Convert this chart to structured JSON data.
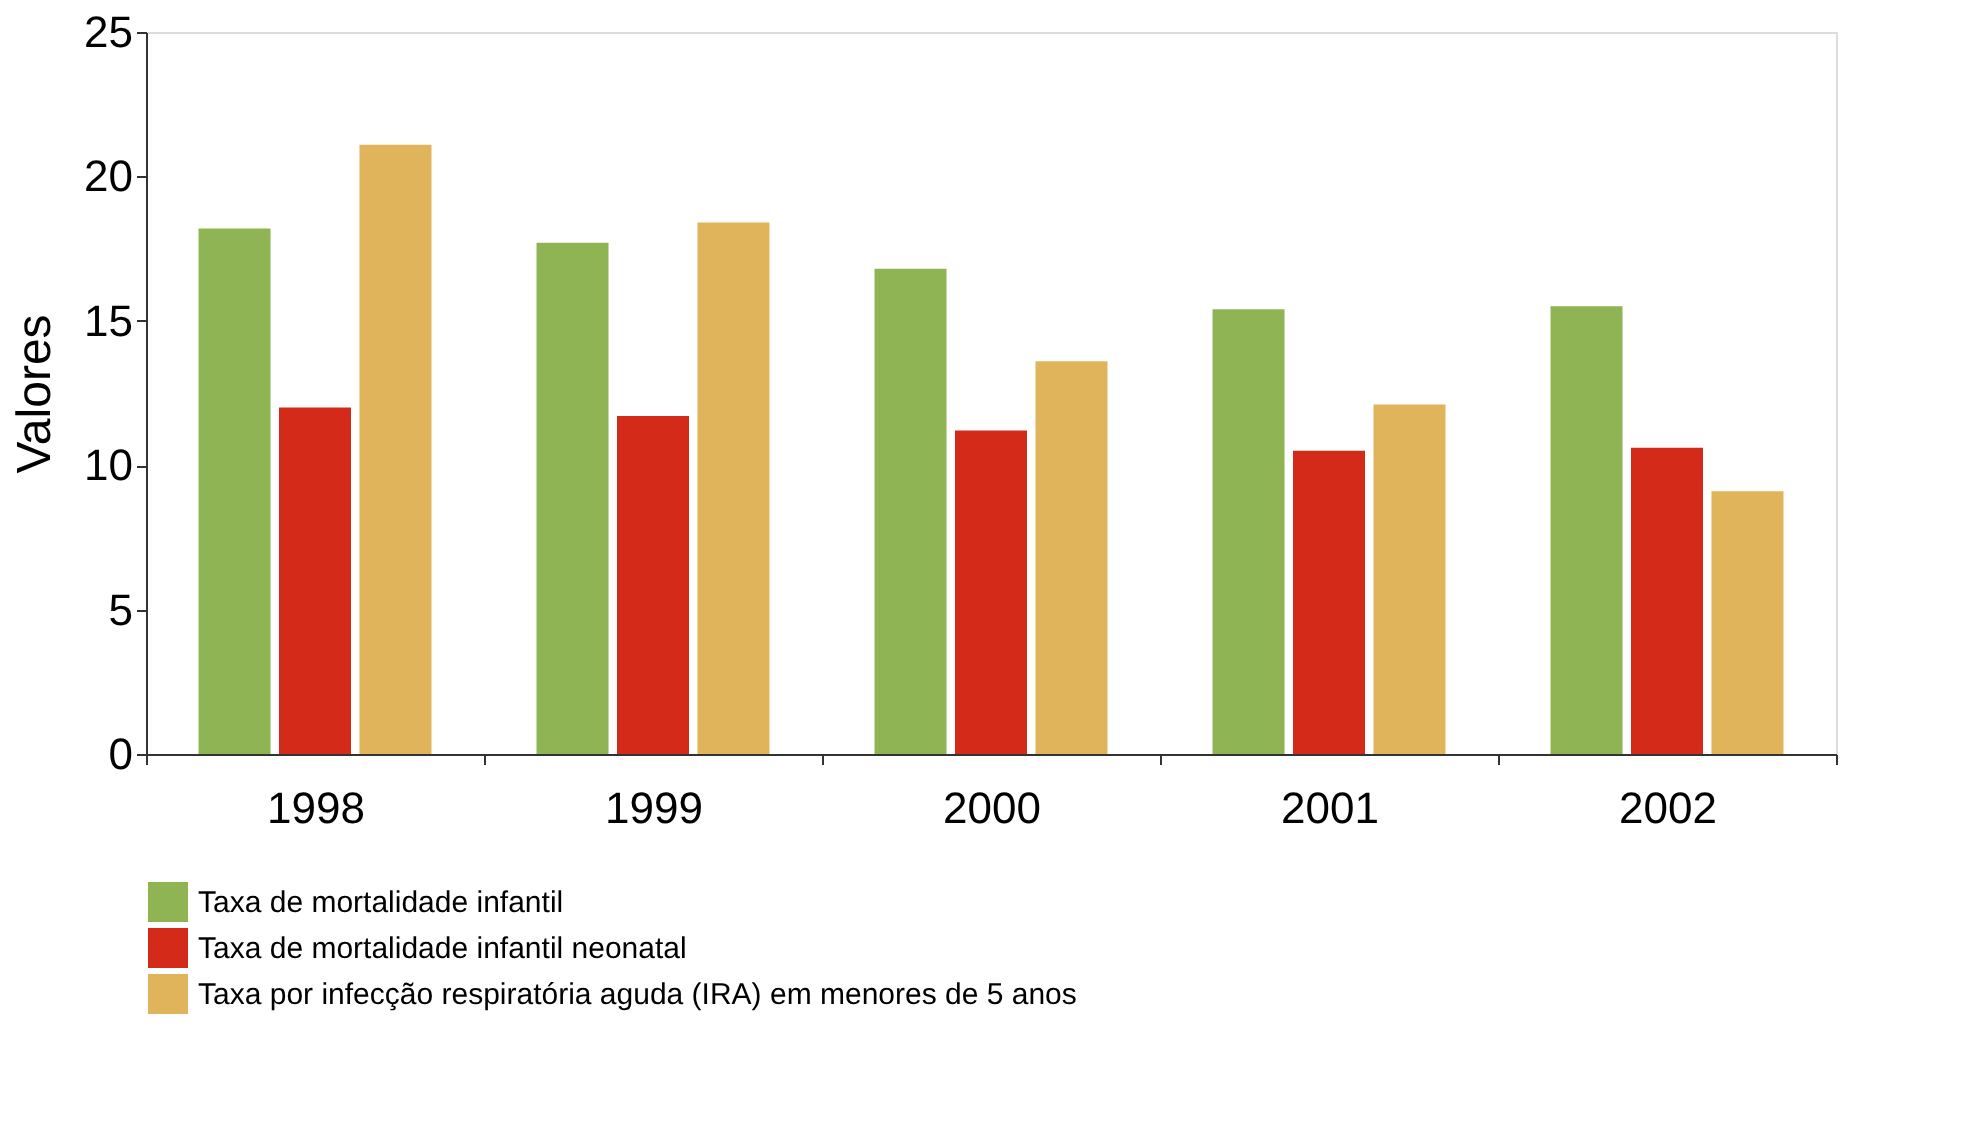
{
  "chart_data": {
    "type": "bar",
    "ylabel": "Valores",
    "categories": [
      "1998",
      "1999",
      "2000",
      "2001",
      "2002"
    ],
    "series": [
      {
        "name": "Taxa de mortalidade infantil",
        "color": "#8fb454",
        "values": [
          18.2,
          17.7,
          16.8,
          15.4,
          15.5
        ]
      },
      {
        "name": "Taxa de mortalidade infantil neonatal",
        "color": "#d42a1a",
        "values": [
          12.0,
          11.7,
          11.2,
          10.5,
          10.6
        ]
      },
      {
        "name": "Taxa por infecção respiratória aguda (IRA) em menores de 5 anos",
        "color": "#e0b45a",
        "values": [
          21.1,
          18.4,
          13.6,
          12.1,
          9.1
        ]
      }
    ],
    "ylim": [
      0,
      25
    ],
    "yticks": [
      0,
      5,
      10,
      15,
      20,
      25
    ],
    "grid": false,
    "legend": "bottom"
  }
}
